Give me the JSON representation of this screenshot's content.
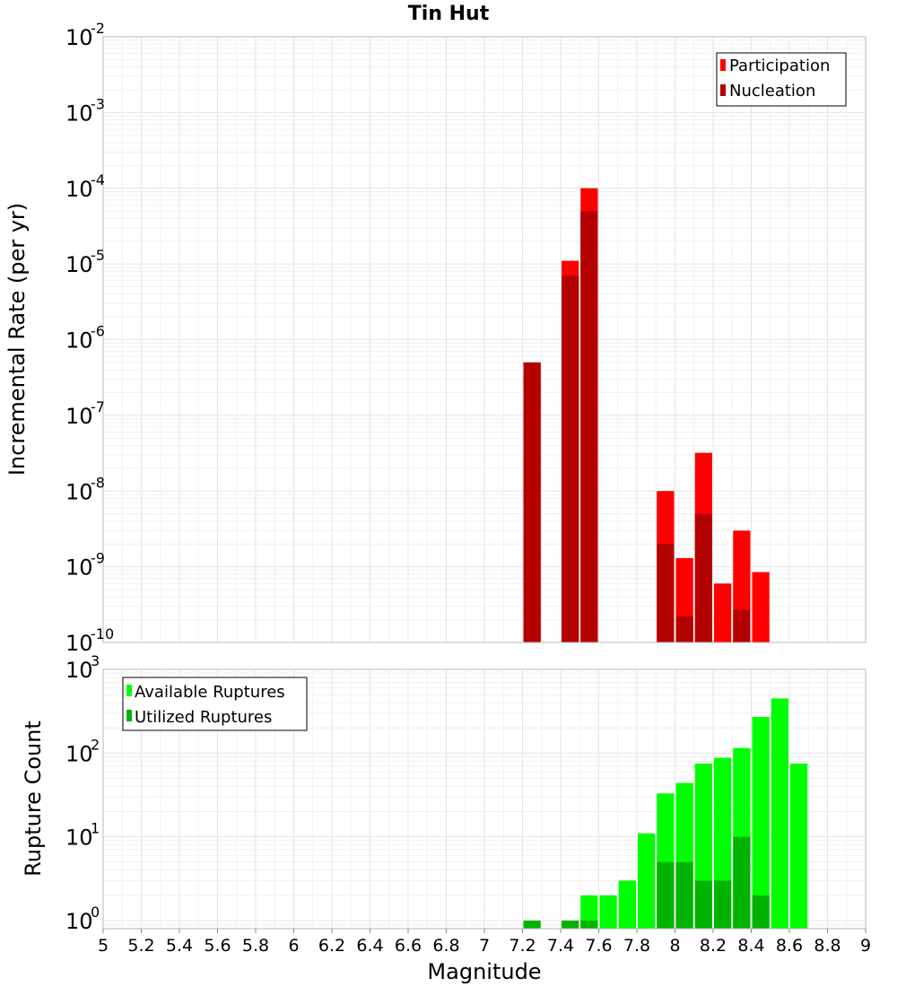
{
  "chart_data": [
    {
      "type": "bar",
      "title": "Tin Hut",
      "xlabel": "",
      "ylabel": "Incremental Rate (per yr)",
      "xlim": [
        5,
        9
      ],
      "ylim": [
        1e-10,
        0.01
      ],
      "yscale": "log",
      "grid": true,
      "legend_position": "top-right",
      "bar_width": 0.1,
      "series": [
        {
          "name": "Participation",
          "color": "#ff0000",
          "x": [
            7.25,
            7.45,
            7.55,
            7.95,
            8.05,
            8.15,
            8.25,
            8.35,
            8.45
          ],
          "values": [
            5e-07,
            1.1e-05,
            0.0001,
            1e-08,
            1.3e-09,
            3.2e-08,
            6e-10,
            3e-09,
            8.5e-10
          ]
        },
        {
          "name": "Nucleation",
          "color": "#b30000",
          "x": [
            7.25,
            7.45,
            7.55,
            7.95,
            8.05,
            8.15,
            8.35
          ],
          "values": [
            5e-07,
            7e-06,
            5e-05,
            2e-09,
            2.2e-10,
            5e-09,
            2.7e-10
          ]
        }
      ],
      "y_ticks": [
        {
          "base": "10",
          "exp": "-10"
        },
        {
          "base": "10",
          "exp": "-9"
        },
        {
          "base": "10",
          "exp": "-8"
        },
        {
          "base": "10",
          "exp": "-7"
        },
        {
          "base": "10",
          "exp": "-6"
        },
        {
          "base": "10",
          "exp": "-5"
        },
        {
          "base": "10",
          "exp": "-4"
        },
        {
          "base": "10",
          "exp": "-3"
        },
        {
          "base": "10",
          "exp": "-2"
        }
      ]
    },
    {
      "type": "bar",
      "title": "",
      "xlabel": "Magnitude",
      "ylabel": "Rupture Count",
      "xlim": [
        5,
        9
      ],
      "ylim": [
        0.8,
        1000
      ],
      "yscale": "log",
      "grid": true,
      "legend_position": "top-left",
      "bar_width": 0.1,
      "series": [
        {
          "name": "Available Ruptures",
          "color": "#00ff00",
          "x": [
            7.55,
            7.65,
            7.75,
            7.85,
            7.95,
            8.05,
            8.15,
            8.25,
            8.35,
            8.45,
            8.55,
            8.65
          ],
          "values": [
            2,
            2,
            3,
            11,
            33,
            44,
            75,
            88,
            115,
            270,
            450,
            75
          ]
        },
        {
          "name": "Utilized Ruptures",
          "color": "#00b300",
          "x": [
            7.25,
            7.45,
            7.55,
            7.95,
            8.05,
            8.15,
            8.25,
            8.35,
            8.45
          ],
          "values": [
            1,
            1,
            1,
            5,
            5,
            3,
            3,
            10,
            2
          ]
        }
      ],
      "y_ticks": [
        {
          "base": "10",
          "exp": "0"
        },
        {
          "base": "10",
          "exp": "1"
        },
        {
          "base": "10",
          "exp": "2"
        },
        {
          "base": "10",
          "exp": "3"
        }
      ],
      "x_ticks": [
        "5",
        "5.2",
        "5.4",
        "5.6",
        "5.8",
        "6",
        "6.2",
        "6.4",
        "6.6",
        "6.8",
        "7",
        "7.2",
        "7.4",
        "7.6",
        "7.8",
        "8",
        "8.2",
        "8.4",
        "8.6",
        "8.8",
        "9"
      ]
    }
  ]
}
